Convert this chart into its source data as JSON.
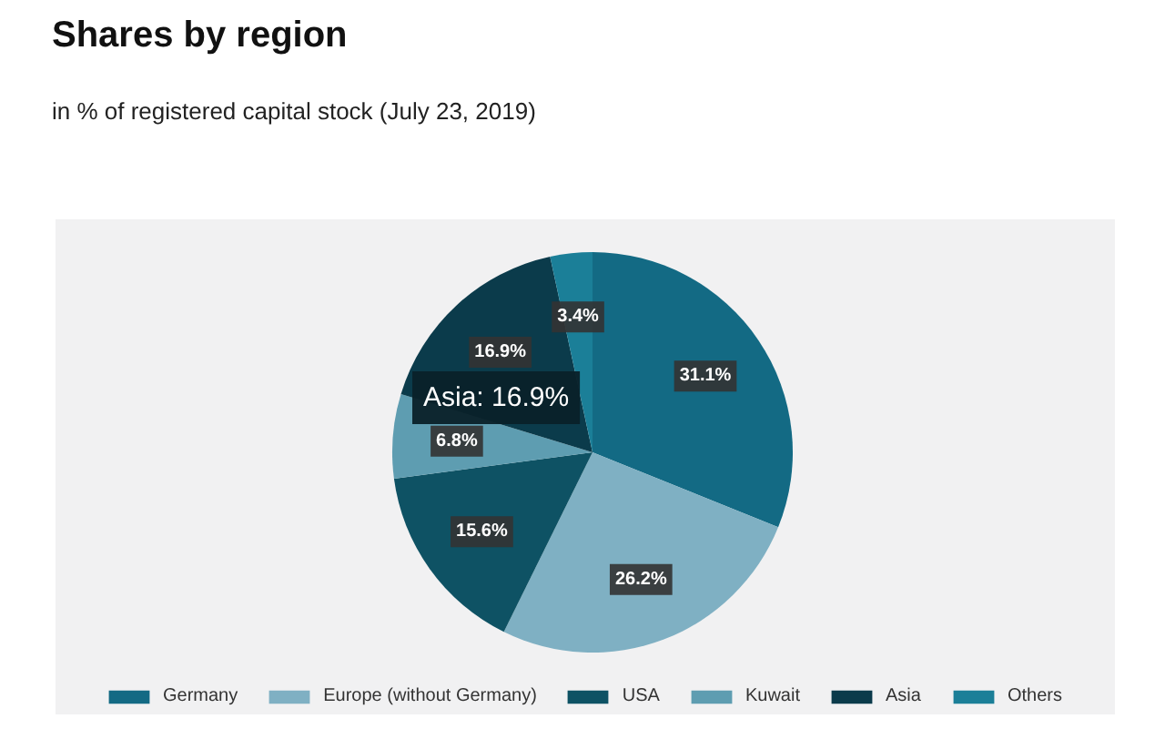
{
  "chart_data": {
    "type": "pie",
    "title": "Shares by region",
    "subtitle": "in % of registered capital stock (July 23, 2019)",
    "categories": [
      "Germany",
      "Europe (without Germany)",
      "USA",
      "Kuwait",
      "Asia",
      "Others"
    ],
    "values": [
      31.1,
      26.2,
      15.6,
      6.8,
      16.9,
      3.4
    ],
    "colors": [
      "#136a84",
      "#7fb0c3",
      "#0e5264",
      "#5e9db1",
      "#0b3b4b",
      "#1b7f98"
    ],
    "value_labels": [
      "31.1%",
      "26.2%",
      "15.6%",
      "6.8%",
      "16.9%",
      "3.4%"
    ],
    "annotations": [
      "Asia: 16.9%"
    ],
    "legend": "bottom"
  }
}
